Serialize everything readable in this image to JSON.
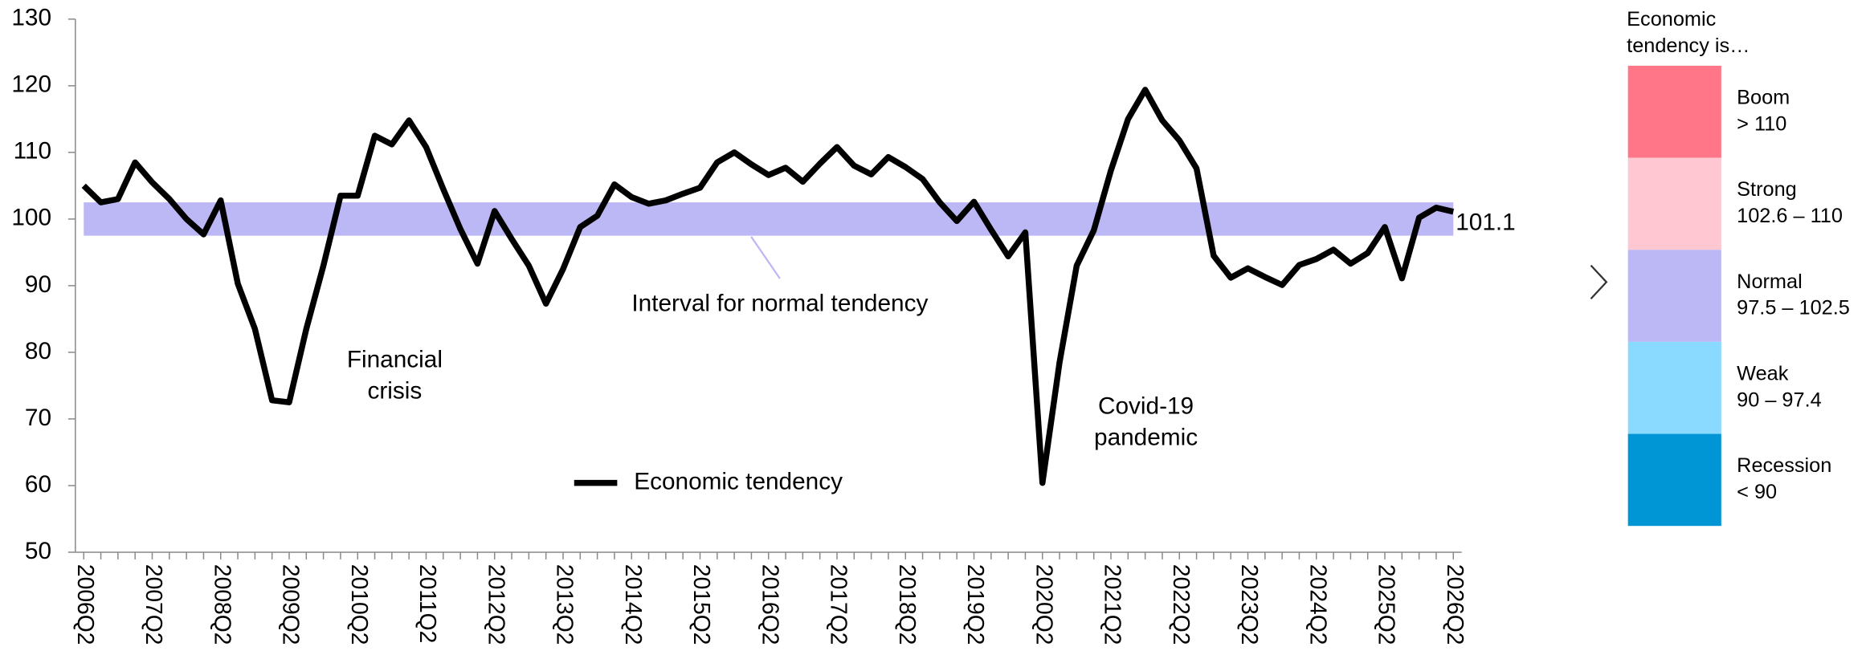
{
  "chart_data": {
    "type": "line",
    "categories": [
      "2006Q2",
      null,
      null,
      null,
      "2007Q2",
      null,
      null,
      null,
      "2008Q2",
      null,
      null,
      null,
      "2009Q2",
      null,
      null,
      null,
      "2010Q2",
      null,
      null,
      null,
      "2011Q2",
      null,
      null,
      null,
      "2012Q2",
      null,
      null,
      null,
      "2013Q2",
      null,
      null,
      null,
      "2014Q2",
      null,
      null,
      null,
      "2015Q2",
      null,
      null,
      null,
      "2016Q2",
      null,
      null,
      null,
      "2017Q2",
      null,
      null,
      null,
      "2018Q2",
      null,
      null,
      null,
      "2019Q2",
      null,
      null,
      null,
      "2020Q2",
      null,
      null,
      null,
      "2021Q2",
      null,
      null,
      null,
      "2022Q2",
      null,
      null,
      null,
      "2023Q2",
      null,
      null,
      null,
      "2024Q2",
      null,
      null,
      null,
      "2025Q2",
      null,
      null,
      null,
      "2026Q2"
    ],
    "series": [
      {
        "name": "Economic tendency",
        "color": "#000000",
        "values": [
          105,
          102.5,
          103,
          108.5,
          105.5,
          103,
          100,
          97.7,
          102.8,
          90.3,
          83.5,
          72.8,
          72.5,
          83.5,
          93,
          103.5,
          103.5,
          112.5,
          111.2,
          114.8,
          110.8,
          104.5,
          98.5,
          93.3,
          101.2,
          97,
          93,
          87.3,
          92.5,
          98.8,
          100.5,
          105.2,
          103.3,
          102.3,
          102.8,
          103.8,
          104.7,
          108.5,
          110,
          108.2,
          106.6,
          107.7,
          105.6,
          108.3,
          110.8,
          108,
          106.7,
          109.3,
          107.8,
          106,
          102.5,
          99.7,
          102.6,
          98.4,
          94.4,
          98,
          60.4,
          78.5,
          93,
          98.3,
          107.3,
          115,
          119.4,
          114.8,
          111.8,
          107.6,
          94.5,
          91.2,
          92.6,
          91.3,
          90.1,
          93.1,
          94,
          95.4,
          93.3,
          94.9,
          98.8,
          91.1,
          100.2,
          101.7,
          101.1
        ]
      }
    ],
    "ylim": [
      50,
      130
    ],
    "yticks": [
      50,
      60,
      70,
      80,
      90,
      100,
      110,
      120,
      130
    ],
    "normal_band": {
      "range": [
        97.5,
        102.5
      ],
      "label": "Interval for normal tendency",
      "color": "#bcb7f5"
    },
    "annotations": [
      [
        "Financial",
        "crisis"
      ],
      [
        "Covid-19",
        "pandemic"
      ]
    ],
    "scale_title": [
      "Economic",
      "tendency is…"
    ],
    "scale": [
      {
        "name": "Boom",
        "range": "> 110",
        "color": "#ff7689"
      },
      {
        "name": "Strong",
        "range": "102.6 – 110",
        "color": "#ffc7d1"
      },
      {
        "name": "Normal",
        "range": "97.5 – 102.5",
        "color": "#bcb7f5"
      },
      {
        "name": "Weak",
        "range": "90 – 97.4",
        "color": "#8ad9ff"
      },
      {
        "name": "Recession",
        "range": "< 90",
        "color": "#0096d6"
      }
    ]
  }
}
